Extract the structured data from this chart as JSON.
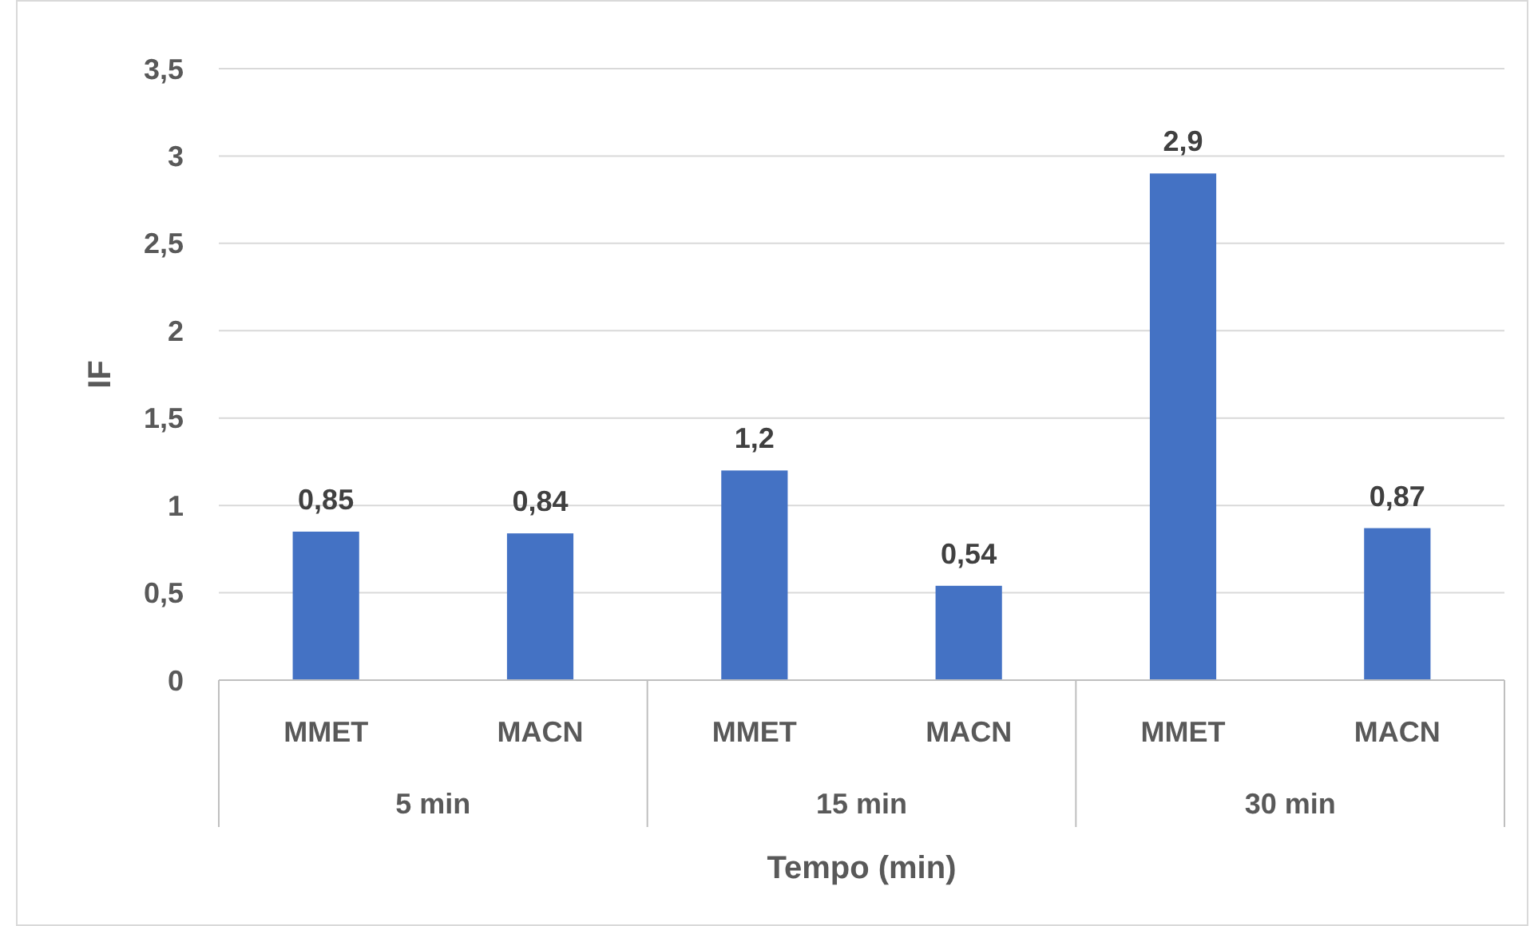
{
  "chart_data": {
    "type": "bar",
    "xlabel": "Tempo (min)",
    "ylabel": "IF",
    "categories": [
      "MMET",
      "MACN",
      "MMET",
      "MACN",
      "MMET",
      "MACN"
    ],
    "values": [
      0.85,
      0.84,
      1.2,
      0.54,
      2.9,
      0.87
    ],
    "value_labels": [
      "0,85",
      "0,84",
      "1,2",
      "0,54",
      "2,9",
      "0,87"
    ],
    "color": "#4472c4",
    "ylim": [
      0,
      3.5
    ],
    "yticks": [
      0,
      {
        "value": 0.5,
        "label": "0,5"
      },
      1,
      {
        "value": 1.5,
        "label": "1,5"
      },
      2,
      {
        "value": 2.5,
        "label": "2,5"
      },
      3,
      {
        "value": 3.5,
        "label": "3,5"
      }
    ],
    "grid": "y",
    "annotations": [
      "5 min",
      "15 min",
      "30 min"
    ]
  }
}
